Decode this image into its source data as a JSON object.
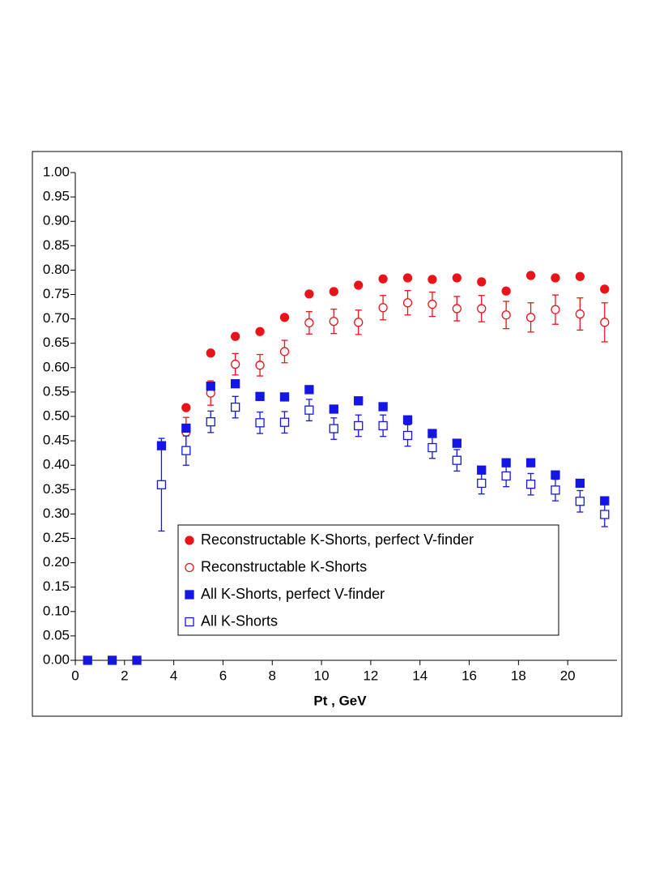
{
  "chart_data": {
    "type": "scatter",
    "xlabel": "Pt , GeV",
    "xlim": [
      0,
      22
    ],
    "ylim": [
      0,
      1
    ],
    "xticks": [
      0,
      2,
      4,
      6,
      8,
      10,
      12,
      14,
      16,
      18,
      20
    ],
    "yticks": [
      {
        "value": 0,
        "label": "0.00"
      },
      {
        "value": 0.05,
        "label": "0.05"
      },
      {
        "value": 0.1,
        "label": "0.10"
      },
      {
        "value": 0.15,
        "label": "0.15"
      },
      {
        "value": 0.2,
        "label": "0.20"
      },
      {
        "value": 0.25,
        "label": "0.25"
      },
      {
        "value": 0.3,
        "label": "0.30"
      },
      {
        "value": 0.35,
        "label": "0.35"
      },
      {
        "value": 0.4,
        "label": "0.40"
      },
      {
        "value": 0.45,
        "label": "0.45"
      },
      {
        "value": 0.5,
        "label": "0.50"
      },
      {
        "value": 0.55,
        "label": "0.55"
      },
      {
        "value": 0.6,
        "label": "0.60"
      },
      {
        "value": 0.65,
        "label": "0.65"
      },
      {
        "value": 0.7,
        "label": "0.70"
      },
      {
        "value": 0.75,
        "label": "0.75"
      },
      {
        "value": 0.8,
        "label": "0.80"
      },
      {
        "value": 0.85,
        "label": "0.85"
      },
      {
        "value": 0.9,
        "label": "0.90"
      },
      {
        "value": 0.95,
        "label": "0.95"
      },
      {
        "value": 1,
        "label": "1.00"
      }
    ],
    "series": [
      {
        "name": "Reconstructable K-Shorts, perfect V-finder",
        "color": "#e8141a",
        "marker": "circle",
        "x": [
          4.5,
          5.5,
          6.5,
          7.5,
          8.5,
          9.5,
          10.5,
          11.5,
          12.5,
          13.5,
          14.5,
          15.5,
          16.5,
          17.5,
          18.5,
          19.5,
          20.5,
          21.5
        ],
        "values": [
          0.518,
          0.63,
          0.664,
          0.674,
          0.703,
          0.751,
          0.756,
          0.769,
          0.782,
          0.784,
          0.781,
          0.784,
          0.776,
          0.757,
          0.789,
          0.784,
          0.787,
          0.761
        ]
      },
      {
        "name": "Reconstructable K-Shorts",
        "color": "#e8141a",
        "marker": "open-circle",
        "x": [
          4.5,
          5.5,
          6.5,
          7.5,
          8.5,
          9.5,
          10.5,
          11.5,
          12.5,
          13.5,
          14.5,
          15.5,
          16.5,
          17.5,
          18.5,
          19.5,
          20.5,
          21.5
        ],
        "values": [
          0.468,
          0.548,
          0.607,
          0.605,
          0.633,
          0.692,
          0.695,
          0.693,
          0.723,
          0.733,
          0.73,
          0.721,
          0.721,
          0.708,
          0.703,
          0.719,
          0.71,
          0.693
        ],
        "errors": [
          0.03,
          0.025,
          0.022,
          0.022,
          0.023,
          0.023,
          0.025,
          0.025,
          0.025,
          0.025,
          0.025,
          0.025,
          0.027,
          0.028,
          0.03,
          0.03,
          0.033,
          0.04
        ]
      },
      {
        "name": "All K-Shorts, perfect V-finder",
        "color": "#1515e6",
        "marker": "square",
        "x": [
          0.5,
          1.5,
          2.5,
          3.5,
          4.5,
          5.5,
          6.5,
          7.5,
          8.5,
          9.5,
          10.5,
          11.5,
          12.5,
          13.5,
          14.5,
          15.5,
          16.5,
          17.5,
          18.5,
          19.5,
          20.5,
          21.5
        ],
        "values": [
          0,
          0,
          0,
          0.44,
          0.476,
          0.562,
          0.567,
          0.541,
          0.54,
          0.555,
          0.515,
          0.532,
          0.52,
          0.493,
          0.465,
          0.445,
          0.39,
          0.405,
          0.405,
          0.38,
          0.363,
          0.327
        ]
      },
      {
        "name": "All K-Shorts",
        "color": "#1515e6",
        "marker": "open-square",
        "x": [
          3.5,
          4.5,
          5.5,
          6.5,
          7.5,
          8.5,
          9.5,
          10.5,
          11.5,
          12.5,
          13.5,
          14.5,
          15.5,
          16.5,
          17.5,
          18.5,
          19.5,
          20.5,
          21.5
        ],
        "values": [
          0.36,
          0.43,
          0.489,
          0.519,
          0.487,
          0.488,
          0.513,
          0.475,
          0.481,
          0.481,
          0.461,
          0.436,
          0.41,
          0.363,
          0.378,
          0.361,
          0.349,
          0.326,
          0.299
        ],
        "errors": [
          0.095,
          0.03,
          0.022,
          0.022,
          0.022,
          0.022,
          0.022,
          0.022,
          0.022,
          0.022,
          0.022,
          0.022,
          0.022,
          0.022,
          0.022,
          0.022,
          0.022,
          0.022,
          0.025
        ]
      }
    ]
  }
}
